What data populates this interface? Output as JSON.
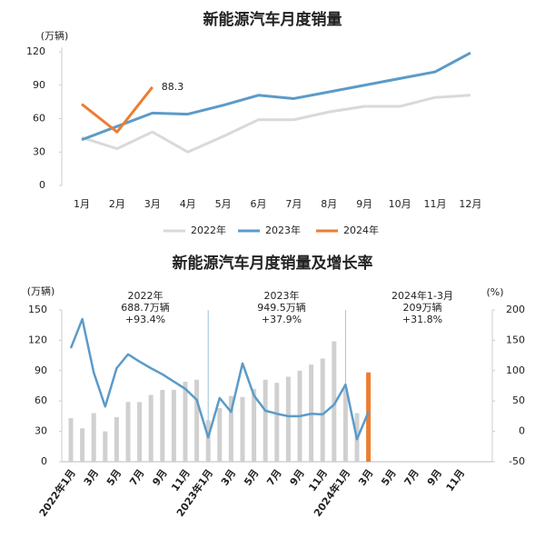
{
  "chart_data": [
    {
      "type": "line",
      "title": "新能源汽车月度销量",
      "y_unit": "(万辆)",
      "categories": [
        "1月",
        "2月",
        "3月",
        "4月",
        "5月",
        "6月",
        "7月",
        "8月",
        "9月",
        "10月",
        "11月",
        "12月"
      ],
      "series": [
        {
          "name": "2022年",
          "color": "#d9d9d9",
          "values": [
            43,
            33,
            48,
            30,
            44,
            59,
            59,
            66,
            71,
            71,
            79,
            81
          ]
        },
        {
          "name": "2023年",
          "color": "#5b9bc8",
          "values": [
            41,
            53,
            65,
            64,
            72,
            81,
            78,
            84,
            90,
            96,
            102,
            119
          ]
        },
        {
          "name": "2024年",
          "color": "#ed7d31",
          "values": [
            73,
            48,
            88.3,
            null,
            null,
            null,
            null,
            null,
            null,
            null,
            null,
            null
          ]
        }
      ],
      "annotations": [
        "88.3"
      ],
      "ylim": [
        0,
        120
      ],
      "yticks": [
        0,
        30,
        60,
        90,
        120
      ],
      "legend": "bottom"
    },
    {
      "type": "combo",
      "title": "新能源汽车月度销量及增长率",
      "y_unit": "(万辆)",
      "y2_unit": "(%)",
      "categories": [
        "2022年1月",
        null,
        "3月",
        null,
        "5月",
        null,
        "7月",
        null,
        "9月",
        null,
        "11月",
        null,
        "2023年1月",
        null,
        "3月",
        null,
        "5月",
        null,
        "7月",
        null,
        "9月",
        null,
        "11月",
        null,
        "2024年1月",
        null,
        "3月",
        null,
        "5月",
        null,
        "7月",
        null,
        "9月",
        null,
        "11月",
        null
      ],
      "series": [
        {
          "type": "bar",
          "color": "#d0d0d0",
          "values": [
            43,
            33,
            48,
            30,
            44,
            59,
            59,
            66,
            71,
            71,
            79,
            81,
            41,
            53,
            65,
            64,
            72,
            81,
            78,
            84,
            90,
            96,
            102,
            119,
            73,
            48,
            null,
            null,
            null,
            null,
            null,
            null,
            null,
            null,
            null,
            null
          ]
        },
        {
          "type": "bar",
          "color": "#ed7d31",
          "values": [
            null,
            null,
            null,
            null,
            null,
            null,
            null,
            null,
            null,
            null,
            null,
            null,
            null,
            null,
            null,
            null,
            null,
            null,
            null,
            null,
            null,
            null,
            null,
            null,
            null,
            null,
            88.3,
            null,
            null,
            null,
            null,
            null,
            null,
            null,
            null,
            null
          ]
        },
        {
          "type": "line",
          "axis": "y2",
          "color": "#5b9bc8",
          "values": [
            137,
            185,
            97,
            41,
            104,
            127,
            115,
            104,
            94,
            82,
            70,
            52,
            -10,
            55,
            32,
            112,
            59,
            34,
            29,
            25,
            25,
            29,
            28,
            44,
            77,
            -13,
            32,
            null,
            null,
            null,
            null,
            null,
            null,
            null,
            null,
            null
          ]
        }
      ],
      "annotations": [
        [
          "2022年",
          "688.7万辆",
          "+93.4%"
        ],
        [
          "2023年",
          "949.5万辆",
          "+37.9%"
        ],
        [
          "2024年1-3月",
          "209万辆",
          "+31.8%"
        ]
      ],
      "ylim": [
        0,
        150
      ],
      "yticks": [
        0,
        30,
        60,
        90,
        120,
        150
      ],
      "y2lim": [
        -50,
        200
      ],
      "y2ticks": [
        -50,
        0,
        50,
        100,
        150,
        200
      ]
    }
  ]
}
